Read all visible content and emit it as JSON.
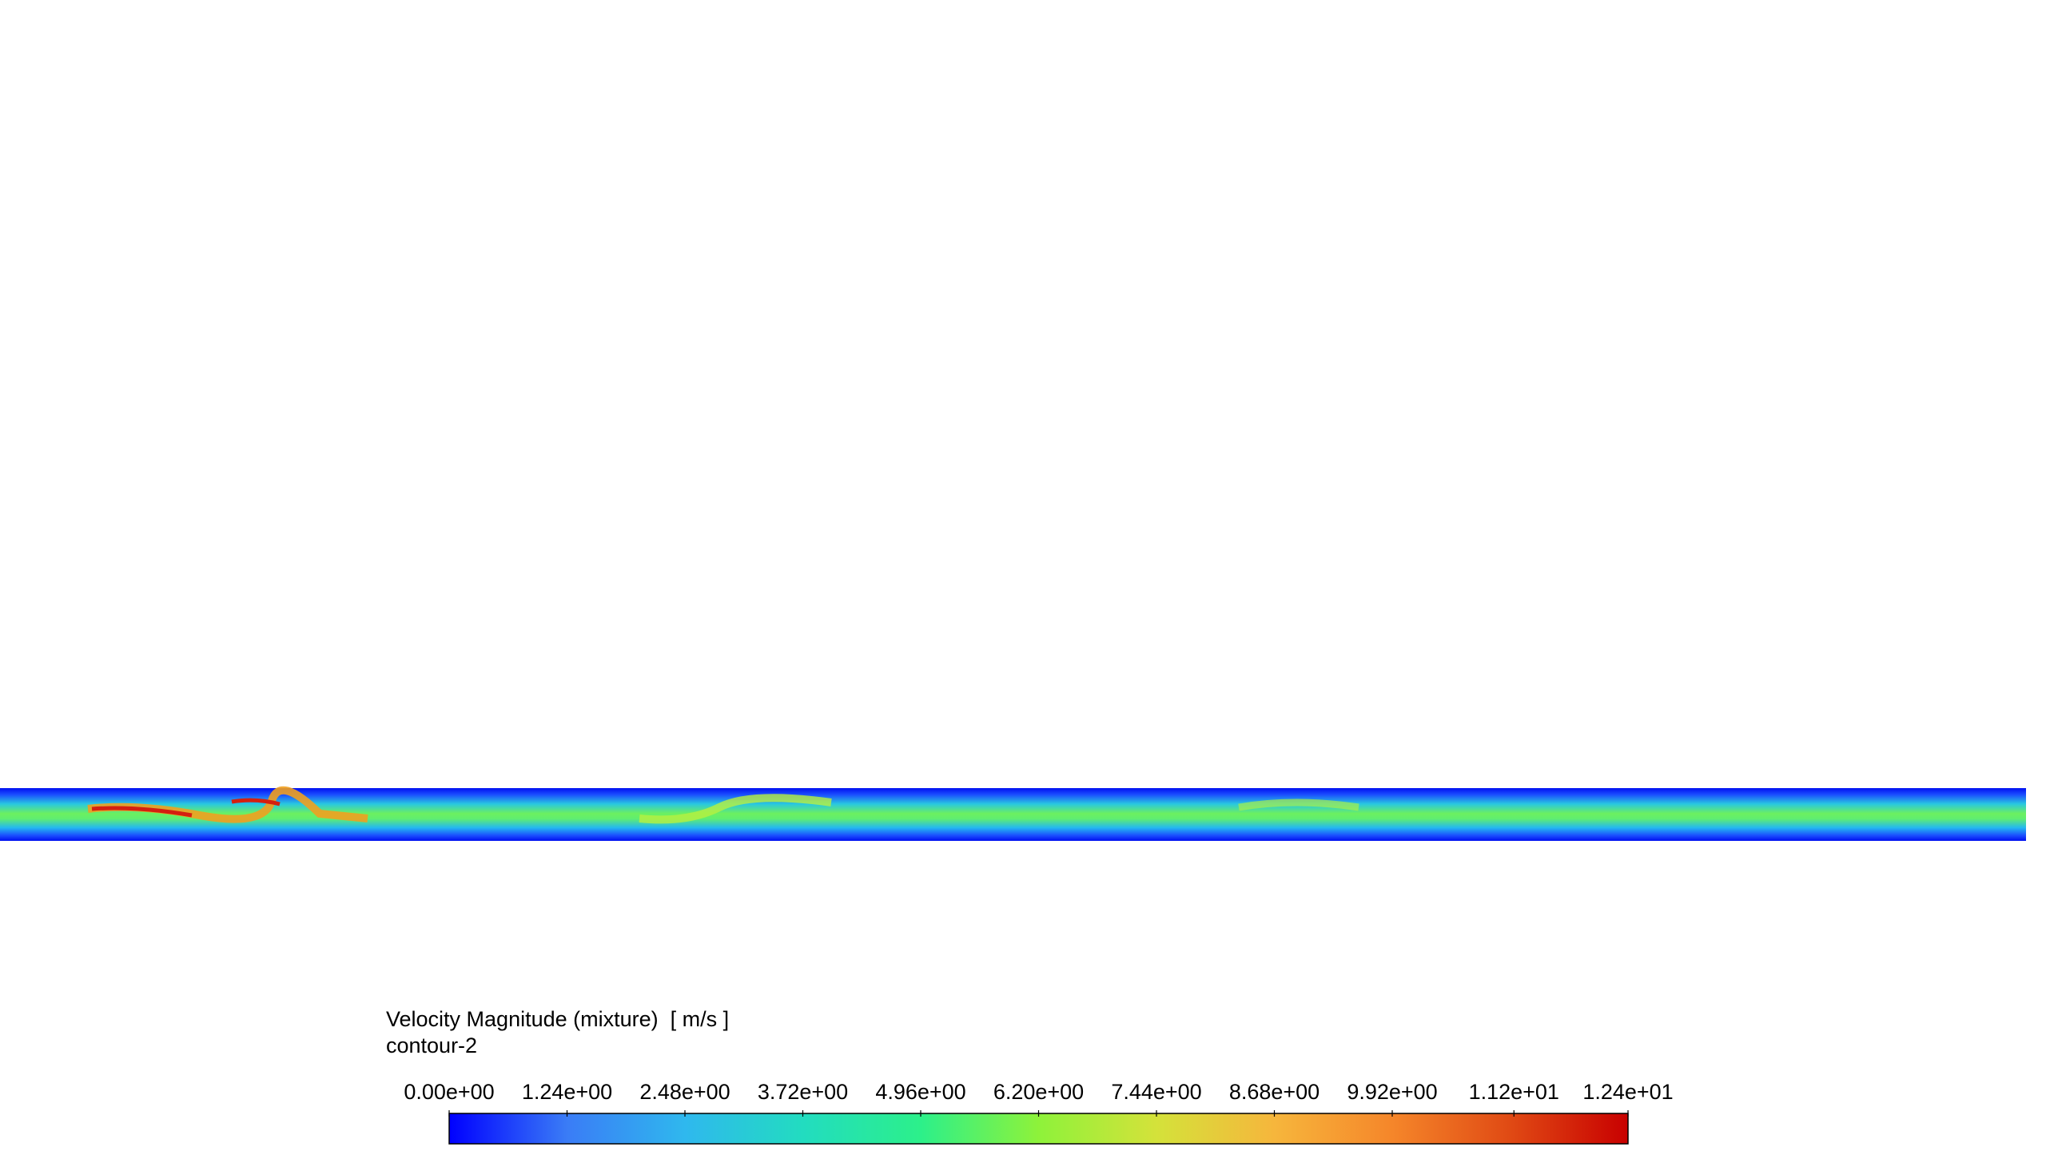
{
  "legend": {
    "title": "Velocity Magnitude (mixture)  [ m/s ]",
    "subtitle": "contour-2",
    "range": [
      0,
      12.4
    ],
    "ticks": [
      {
        "value": 0,
        "label": "0.00e+00"
      },
      {
        "value": 1.24,
        "label": "1.24e+00"
      },
      {
        "value": 2.48,
        "label": "2.48e+00"
      },
      {
        "value": 3.72,
        "label": "3.72e+00"
      },
      {
        "value": 4.96,
        "label": "4.96e+00"
      },
      {
        "value": 6.2,
        "label": "6.20e+00"
      },
      {
        "value": 7.44,
        "label": "7.44e+00"
      },
      {
        "value": 8.68,
        "label": "8.68e+00"
      },
      {
        "value": 9.92,
        "label": "9.92e+00"
      },
      {
        "value": 11.2,
        "label": "1.12e+01"
      },
      {
        "value": 12.4,
        "label": "1.24e+01"
      }
    ],
    "colormap": [
      "#0000ff",
      "#3a7cf6",
      "#2fb8ee",
      "#22dcc0",
      "#2cf08a",
      "#8ef23a",
      "#d4e23a",
      "#f6b63c",
      "#f5862a",
      "#e04a14",
      "#c80000"
    ]
  }
}
